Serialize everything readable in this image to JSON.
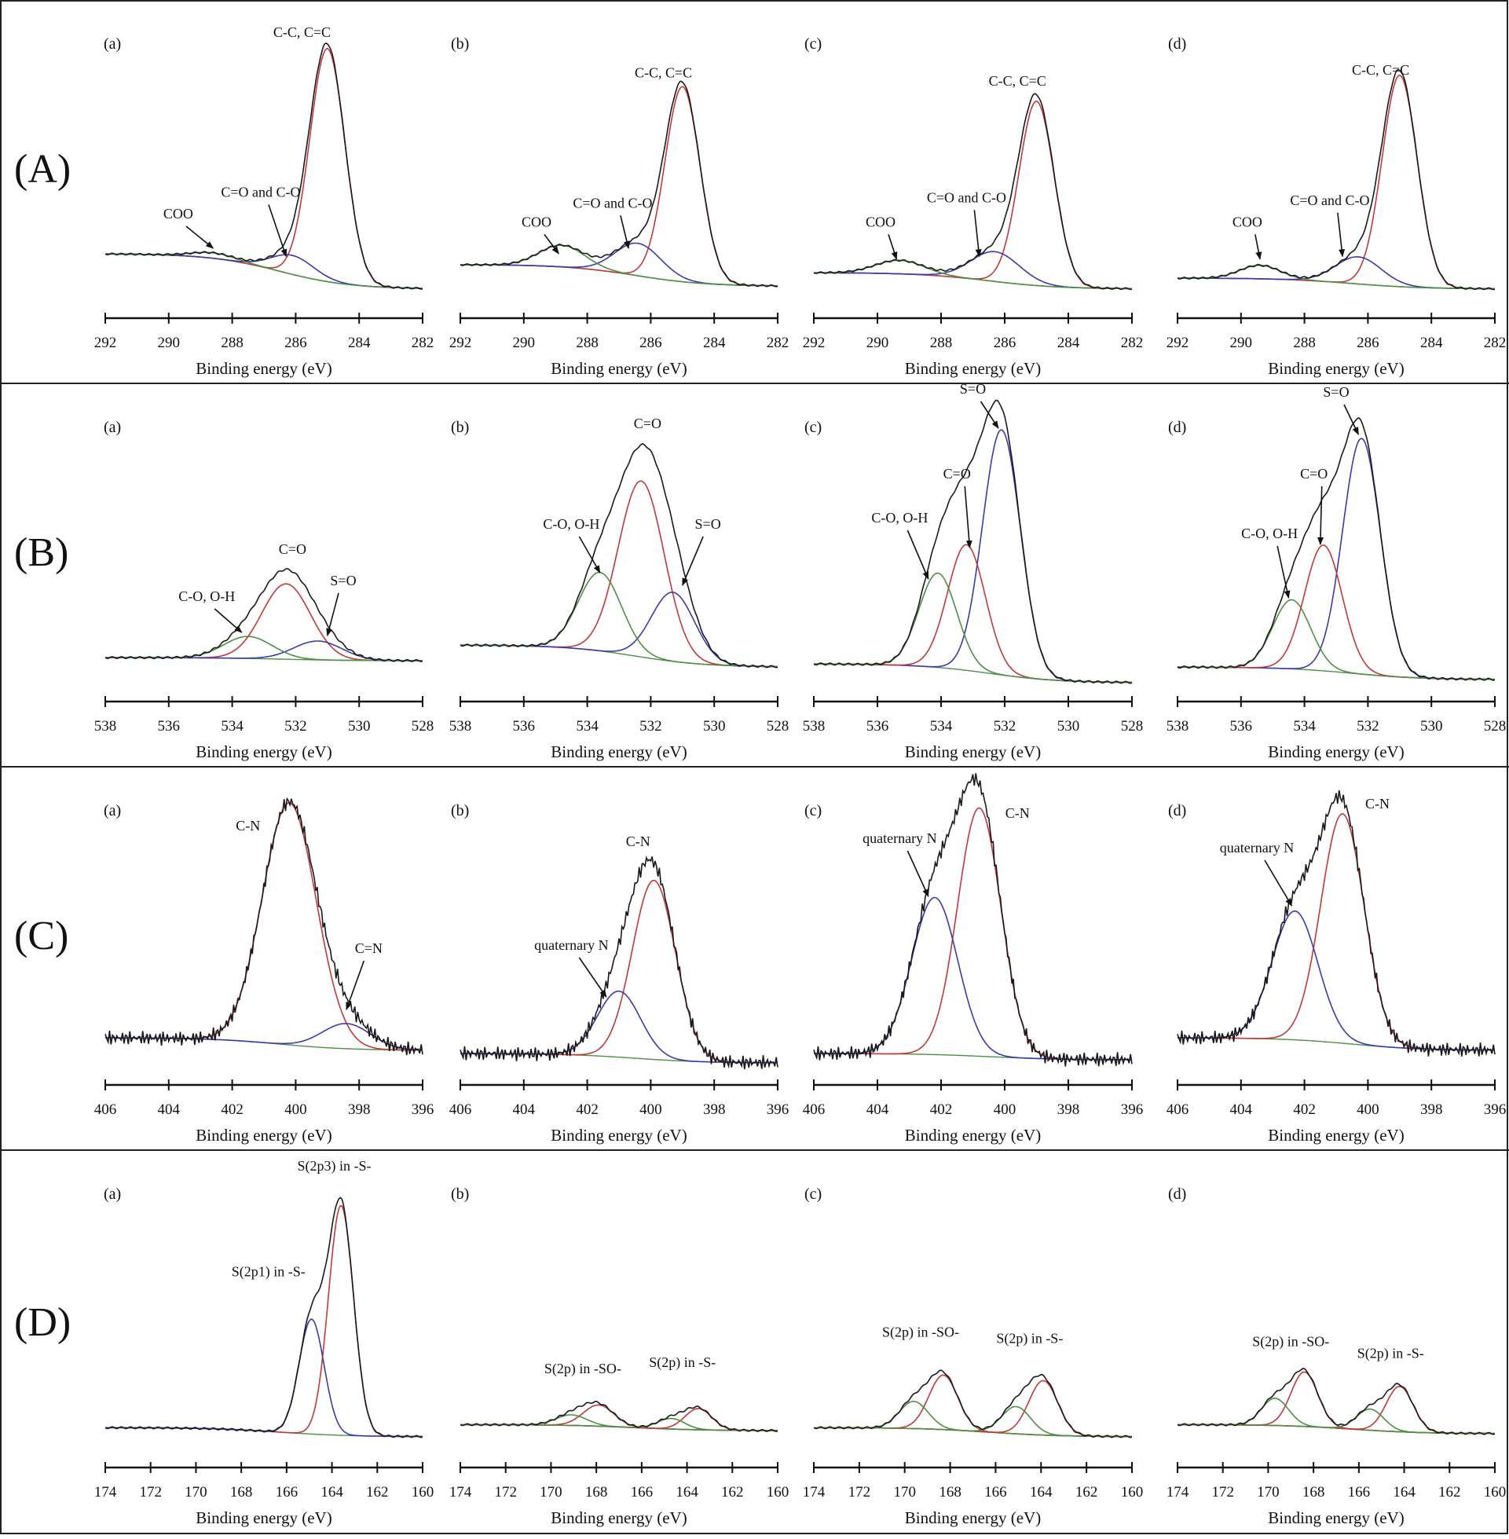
{
  "figure": {
    "colors": {
      "raw": "#1a1a1a",
      "red": "#c0393b",
      "blue": "#3a3aa8",
      "green": "#4d8f45",
      "axis": "#111111"
    },
    "xlabel": "Binding energy (eV)"
  },
  "chart_data": [
    {
      "row": "(A)",
      "type": "line",
      "xlim": [
        292,
        282
      ],
      "xticks": [
        "292",
        "290",
        "288",
        "286",
        "284",
        "282"
      ],
      "xlabel": "Binding energy (eV)",
      "panels": [
        {
          "label": "(a)",
          "baseline": [
            0.18,
            0.05
          ],
          "components": [
            {
              "name": "C-C, C=C",
              "color": "red",
              "center": 285.0,
              "height": 0.86,
              "fwhm": 1.3
            },
            {
              "name": "C=O and C-O",
              "color": "blue",
              "center": 286.1,
              "height": 0.07,
              "fwhm": 1.6
            },
            {
              "name": "COO",
              "color": "green",
              "center": 288.6,
              "height": 0.02,
              "fwhm": 1.6
            }
          ],
          "annotations": [
            {
              "text": "C-C, C=C",
              "x": 285.8,
              "y": 0.98
            },
            {
              "text": "C=O and C-O",
              "x": 287.1,
              "y": 0.39,
              "ax": 286.3,
              "ay": 0.17
            },
            {
              "text": "COO",
              "x": 289.7,
              "y": 0.31,
              "ax": 288.6,
              "ay": 0.2
            }
          ]
        },
        {
          "label": "(b)",
          "baseline": [
            0.14,
            0.06
          ],
          "components": [
            {
              "name": "C-C, C=C",
              "color": "red",
              "center": 285.0,
              "height": 0.72,
              "fwhm": 1.3
            },
            {
              "name": "C=O and C-O",
              "color": "blue",
              "center": 286.4,
              "height": 0.12,
              "fwhm": 1.7
            },
            {
              "name": "COO",
              "color": "green",
              "center": 288.8,
              "height": 0.08,
              "fwhm": 1.7
            }
          ],
          "annotations": [
            {
              "text": "C-C, C=C",
              "x": 285.6,
              "y": 0.83
            },
            {
              "text": "C=O and C-O",
              "x": 287.2,
              "y": 0.35,
              "ax": 286.7,
              "ay": 0.2
            },
            {
              "text": "COO",
              "x": 289.6,
              "y": 0.28,
              "ax": 288.9,
              "ay": 0.18
            }
          ]
        },
        {
          "label": "(c)",
          "baseline": [
            0.11,
            0.05
          ],
          "components": [
            {
              "name": "C-C, C=C",
              "color": "red",
              "center": 285.0,
              "height": 0.68,
              "fwhm": 1.3
            },
            {
              "name": "C=O and C-O",
              "color": "blue",
              "center": 286.3,
              "height": 0.11,
              "fwhm": 1.8
            },
            {
              "name": "COO",
              "color": "green",
              "center": 289.3,
              "height": 0.05,
              "fwhm": 1.8
            }
          ],
          "annotations": [
            {
              "text": "C-C, C=C",
              "x": 285.6,
              "y": 0.8
            },
            {
              "text": "C=O and C-O",
              "x": 287.2,
              "y": 0.37,
              "ax": 286.8,
              "ay": 0.17
            },
            {
              "text": "COO",
              "x": 289.9,
              "y": 0.28,
              "ax": 289.4,
              "ay": 0.16
            }
          ]
        },
        {
          "label": "(d)",
          "baseline": [
            0.09,
            0.05
          ],
          "components": [
            {
              "name": "C-C, C=C",
              "color": "red",
              "center": 285.0,
              "height": 0.78,
              "fwhm": 1.3
            },
            {
              "name": "C=O and C-O",
              "color": "blue",
              "center": 286.3,
              "height": 0.1,
              "fwhm": 1.7
            },
            {
              "name": "COO",
              "color": "green",
              "center": 289.4,
              "height": 0.05,
              "fwhm": 1.5
            }
          ],
          "annotations": [
            {
              "text": "C-C, C=C",
              "x": 285.6,
              "y": 0.84
            },
            {
              "text": "C=O and C-O",
              "x": 287.2,
              "y": 0.36,
              "ax": 286.8,
              "ay": 0.17
            },
            {
              "text": "COO",
              "x": 289.8,
              "y": 0.28,
              "ax": 289.4,
              "ay": 0.16
            }
          ]
        }
      ]
    },
    {
      "row": "(B)",
      "type": "line",
      "xlim": [
        538,
        528
      ],
      "xticks": [
        "538",
        "536",
        "534",
        "532",
        "530",
        "528"
      ],
      "xlabel": "Binding energy (eV)",
      "panels": [
        {
          "label": "(a)",
          "baseline": [
            0.09,
            0.08
          ],
          "components": [
            {
              "name": "C=O",
              "color": "red",
              "center": 532.3,
              "height": 0.24,
              "fwhm": 1.8
            },
            {
              "name": "S=O",
              "color": "blue",
              "center": 531.3,
              "height": 0.06,
              "fwhm": 1.8
            },
            {
              "name": "C-O, O-H",
              "color": "green",
              "center": 533.5,
              "height": 0.07,
              "fwhm": 1.8
            }
          ],
          "annotations": [
            {
              "text": "C=O",
              "x": 532.1,
              "y": 0.42
            },
            {
              "text": "S=O",
              "x": 530.5,
              "y": 0.32,
              "ax": 531.0,
              "ay": 0.16
            },
            {
              "text": "C-O, O-H",
              "x": 534.8,
              "y": 0.27,
              "ax": 533.7,
              "ay": 0.17
            }
          ]
        },
        {
          "label": "(b)",
          "baseline": [
            0.13,
            0.06
          ],
          "components": [
            {
              "name": "C=O",
              "color": "red",
              "center": 532.3,
              "height": 0.56,
              "fwhm": 1.7
            },
            {
              "name": "S=O",
              "color": "blue",
              "center": 531.3,
              "height": 0.22,
              "fwhm": 1.6
            },
            {
              "name": "C-O, O-H",
              "color": "green",
              "center": 533.6,
              "height": 0.25,
              "fwhm": 1.6
            }
          ],
          "annotations": [
            {
              "text": "C=O",
              "x": 532.1,
              "y": 0.82
            },
            {
              "text": "S=O",
              "x": 530.2,
              "y": 0.5,
              "ax": 531.0,
              "ay": 0.32
            },
            {
              "text": "C-O, O-H",
              "x": 534.5,
              "y": 0.5,
              "ax": 533.6,
              "ay": 0.36
            }
          ]
        },
        {
          "label": "(c)",
          "baseline": [
            0.07,
            0.01
          ],
          "components": [
            {
              "name": "S=O",
              "color": "blue",
              "center": 532.1,
              "height": 0.78,
              "fwhm": 1.4
            },
            {
              "name": "C=O",
              "color": "red",
              "center": 533.2,
              "height": 0.4,
              "fwhm": 1.4
            },
            {
              "name": "C-O, O-H",
              "color": "green",
              "center": 534.1,
              "height": 0.3,
              "fwhm": 1.4
            }
          ],
          "annotations": [
            {
              "text": "S=O",
              "x": 533.0,
              "y": 0.93,
              "ax": 532.2,
              "ay": 0.82
            },
            {
              "text": "C=O",
              "x": 533.5,
              "y": 0.66,
              "ax": 533.1,
              "ay": 0.44
            },
            {
              "text": "C-O, O-H",
              "x": 535.3,
              "y": 0.52,
              "ax": 534.4,
              "ay": 0.34
            }
          ]
        },
        {
          "label": "(d)",
          "baseline": [
            0.06,
            0.02
          ],
          "components": [
            {
              "name": "S=O",
              "color": "blue",
              "center": 532.2,
              "height": 0.75,
              "fwhm": 1.4
            },
            {
              "name": "C=O",
              "color": "red",
              "center": 533.4,
              "height": 0.4,
              "fwhm": 1.4
            },
            {
              "name": "C-O, O-H",
              "color": "green",
              "center": 534.4,
              "height": 0.22,
              "fwhm": 1.4
            }
          ],
          "annotations": [
            {
              "text": "S=O",
              "x": 533.0,
              "y": 0.92,
              "ax": 532.3,
              "ay": 0.8
            },
            {
              "text": "C=O",
              "x": 533.7,
              "y": 0.66,
              "ax": 533.5,
              "ay": 0.45
            },
            {
              "text": "C-O, O-H",
              "x": 535.1,
              "y": 0.47,
              "ax": 534.5,
              "ay": 0.28
            }
          ]
        }
      ]
    },
    {
      "row": "(C)",
      "type": "line",
      "xlim": [
        406,
        396
      ],
      "xticks": [
        "406",
        "404",
        "402",
        "400",
        "398",
        "396"
      ],
      "xlabel": "Binding energy (eV)",
      "panels": [
        {
          "label": "(a)",
          "baseline": [
            0.1,
            0.06
          ],
          "components": [
            {
              "name": "C-N",
              "color": "red",
              "center": 400.2,
              "height": 0.77,
              "fwhm": 2.0
            },
            {
              "name": "C=N",
              "color": "blue",
              "center": 398.4,
              "height": 0.08,
              "fwhm": 1.8
            }
          ],
          "annotations": [
            {
              "text": "C-N",
              "x": 401.5,
              "y": 0.76
            },
            {
              "text": "C=N",
              "x": 397.7,
              "y": 0.37,
              "ax": 398.4,
              "ay": 0.19
            }
          ]
        },
        {
          "label": "(b)",
          "baseline": [
            0.05,
            0.02
          ],
          "components": [
            {
              "name": "C-N",
              "color": "red",
              "center": 399.9,
              "height": 0.57,
              "fwhm": 1.6
            },
            {
              "name": "quaternary N",
              "color": "blue",
              "center": 401.0,
              "height": 0.21,
              "fwhm": 1.6
            }
          ],
          "annotations": [
            {
              "text": "C-N",
              "x": 400.4,
              "y": 0.71
            },
            {
              "text": "quaternary N",
              "x": 402.5,
              "y": 0.38,
              "ax": 401.4,
              "ay": 0.23
            }
          ]
        },
        {
          "label": "(c)",
          "baseline": [
            0.05,
            0.03
          ],
          "components": [
            {
              "name": "C-N",
              "color": "red",
              "center": 400.8,
              "height": 0.79,
              "fwhm": 1.6
            },
            {
              "name": "quaternary N",
              "color": "blue",
              "center": 402.2,
              "height": 0.5,
              "fwhm": 1.7
            }
          ],
          "annotations": [
            {
              "text": "C-N",
              "x": 399.6,
              "y": 0.8
            },
            {
              "text": "quaternary N",
              "x": 403.3,
              "y": 0.72,
              "ax": 402.4,
              "ay": 0.55
            }
          ]
        },
        {
          "label": "(d)",
          "baseline": [
            0.1,
            0.06
          ],
          "components": [
            {
              "name": "C-N",
              "color": "red",
              "center": 400.8,
              "height": 0.73,
              "fwhm": 1.6
            },
            {
              "name": "quaternary N",
              "color": "blue",
              "center": 402.3,
              "height": 0.41,
              "fwhm": 1.7
            }
          ],
          "annotations": [
            {
              "text": "C-N",
              "x": 399.7,
              "y": 0.83
            },
            {
              "text": "quaternary N",
              "x": 403.5,
              "y": 0.69,
              "ax": 402.4,
              "ay": 0.52
            }
          ]
        }
      ]
    },
    {
      "row": "(D)",
      "type": "line",
      "xlim": [
        174,
        160
      ],
      "xticks": [
        "174",
        "172",
        "170",
        "168",
        "166",
        "164",
        "162",
        "160"
      ],
      "xlabel": "Binding energy (eV)",
      "panels": [
        {
          "label": "(a)",
          "baseline": [
            0.08,
            0.05
          ],
          "components": [
            {
              "name": "S(2p3) in -S-",
              "color": "red",
              "center": 163.6,
              "height": 0.76,
              "fwhm": 1.3
            },
            {
              "name": "S(2p1) in -S-",
              "color": "blue",
              "center": 164.9,
              "height": 0.38,
              "fwhm": 1.3
            }
          ],
          "annotations": [
            {
              "text": "S(2p3) in -S-",
              "x": 163.9,
              "y": 0.93
            },
            {
              "text": "S(2p1) in -S-",
              "x": 166.8,
              "y": 0.58
            }
          ]
        },
        {
          "label": "(b)",
          "baseline": [
            0.09,
            0.07
          ],
          "components": [
            {
              "name": "S(2p) in -SO- a",
              "color": "red",
              "center": 167.9,
              "height": 0.07,
              "fwhm": 1.6
            },
            {
              "name": "S(2p) in -SO- b",
              "color": "green",
              "center": 169.1,
              "height": 0.035,
              "fwhm": 1.6
            },
            {
              "name": "S(2p) in -S- a",
              "color": "red",
              "center": 163.5,
              "height": 0.07,
              "fwhm": 1.4
            },
            {
              "name": "S(2p) in -S- b",
              "color": "green",
              "center": 164.7,
              "height": 0.035,
              "fwhm": 1.4
            }
          ],
          "annotations": [
            {
              "text": "S(2p) in -SO-",
              "x": 168.6,
              "y": 0.26
            },
            {
              "text": "S(2p) in -S-",
              "x": 164.2,
              "y": 0.28
            }
          ]
        },
        {
          "label": "(c)",
          "baseline": [
            0.08,
            0.05
          ],
          "components": [
            {
              "name": "S(2p) in -SO- a",
              "color": "red",
              "center": 168.3,
              "height": 0.18,
              "fwhm": 1.5
            },
            {
              "name": "S(2p) in -SO- b",
              "color": "green",
              "center": 169.6,
              "height": 0.09,
              "fwhm": 1.5
            },
            {
              "name": "S(2p) in -S- a",
              "color": "red",
              "center": 163.9,
              "height": 0.18,
              "fwhm": 1.5
            },
            {
              "name": "S(2p) in -S- b",
              "color": "green",
              "center": 165.1,
              "height": 0.09,
              "fwhm": 1.5
            }
          ],
          "annotations": [
            {
              "text": "S(2p) in -SO-",
              "x": 169.3,
              "y": 0.38
            },
            {
              "text": "S(2p) in -S-",
              "x": 164.5,
              "y": 0.36
            }
          ]
        },
        {
          "label": "(d)",
          "baseline": [
            0.09,
            0.06
          ],
          "components": [
            {
              "name": "S(2p) in -SO- a",
              "color": "red",
              "center": 168.4,
              "height": 0.18,
              "fwhm": 1.4
            },
            {
              "name": "S(2p) in -SO- b",
              "color": "green",
              "center": 169.7,
              "height": 0.09,
              "fwhm": 1.4
            },
            {
              "name": "S(2p) in -S- a",
              "color": "red",
              "center": 164.2,
              "height": 0.15,
              "fwhm": 1.4
            },
            {
              "name": "S(2p) in -S- b",
              "color": "green",
              "center": 165.5,
              "height": 0.07,
              "fwhm": 1.4
            }
          ],
          "annotations": [
            {
              "text": "S(2p) in -SO-",
              "x": 169.0,
              "y": 0.35
            },
            {
              "text": "S(2p) in -S-",
              "x": 164.6,
              "y": 0.31
            }
          ]
        }
      ]
    }
  ]
}
